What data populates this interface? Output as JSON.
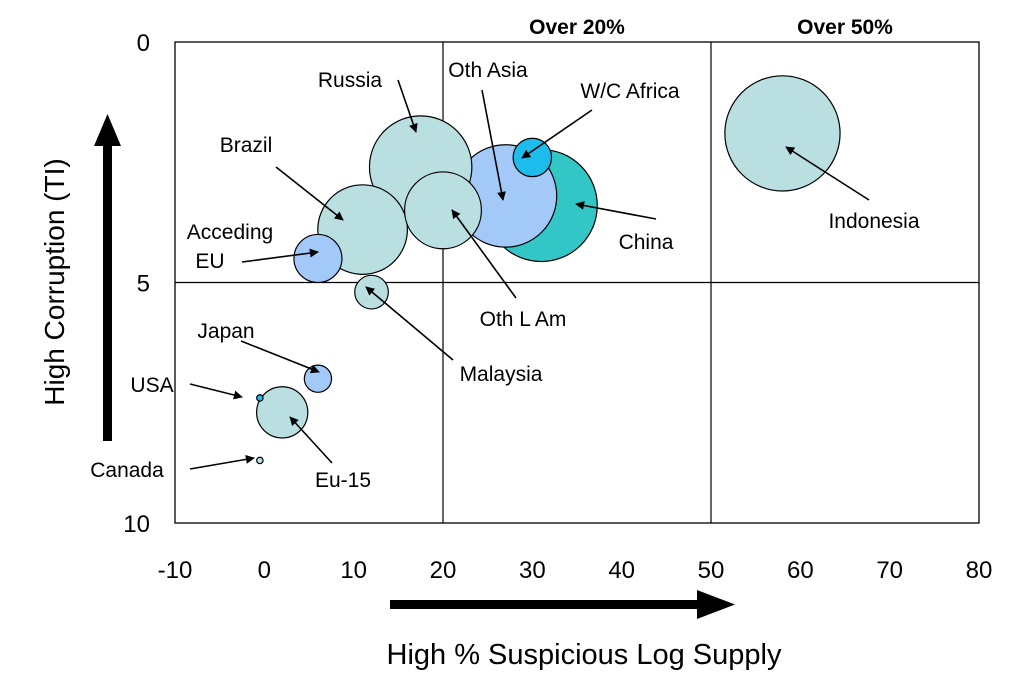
{
  "chart_data": {
    "type": "scatter",
    "subtype": "bubble",
    "xlabel": "High % Suspicious Log Supply",
    "ylabel": "High Corruption (TI)",
    "xlim": [
      -10,
      80
    ],
    "ylim": [
      0,
      10
    ],
    "y_inverted": true,
    "x_ticks": [
      "-10",
      "0",
      "10",
      "20",
      "30",
      "40",
      "50",
      "60",
      "70",
      "80"
    ],
    "y_ticks": [
      "0",
      "5",
      "10"
    ],
    "divider_lines": {
      "x": [
        20,
        50
      ],
      "y": [
        5
      ]
    },
    "region_headers": [
      {
        "text": "Over 20%",
        "x": 35
      },
      {
        "text": "Over 50%",
        "x": 65
      }
    ],
    "grid": false,
    "colors": {
      "light_teal": "#b9dfe0",
      "light_blue": "#a3c9f9",
      "teal": "#33c6c6",
      "cyan": "#1ebcec",
      "outline": "#000000"
    },
    "points": [
      {
        "label": "Indonesia",
        "x": 58,
        "y": 1.9,
        "size": 36,
        "color": "#b9dfe0"
      },
      {
        "label": "China",
        "x": 31,
        "y": 3.4,
        "size": 35,
        "color": "#33c6c6"
      },
      {
        "label": "Oth Asia",
        "x": 27,
        "y": 3.2,
        "size": 32,
        "color": "#a3c9f9"
      },
      {
        "label": "Russia",
        "x": 17.5,
        "y": 2.6,
        "size": 32,
        "color": "#b9dfe0"
      },
      {
        "label": "Brazil",
        "x": 11,
        "y": 3.9,
        "size": 28,
        "color": "#b9dfe0"
      },
      {
        "label": "Oth L Am",
        "x": 20,
        "y": 3.5,
        "size": 24,
        "color": "#b9dfe0"
      },
      {
        "label": "W/C Africa",
        "x": 30,
        "y": 2.4,
        "size": 12,
        "color": "#1ebcec"
      },
      {
        "label": "Acceding EU",
        "x": 6,
        "y": 4.5,
        "size": 15,
        "color": "#a3c9f9"
      },
      {
        "label": "Malaysia",
        "x": 12,
        "y": 5.2,
        "size": 10.5,
        "color": "#b9dfe0"
      },
      {
        "label": "Japan",
        "x": 6,
        "y": 7.0,
        "size": 8.5,
        "color": "#a3c9f9"
      },
      {
        "label": "Eu-15",
        "x": 2,
        "y": 7.7,
        "size": 16,
        "color": "#b9dfe0"
      },
      {
        "label": "USA",
        "x": -0.5,
        "y": 7.4,
        "size": 2,
        "color": "#1ebcec"
      },
      {
        "label": "Canada",
        "x": -0.5,
        "y": 8.7,
        "size": 2,
        "color": "#b9dfe0"
      }
    ],
    "annotations": [
      {
        "text": "Russia",
        "ref": "Russia"
      },
      {
        "text": "Oth Asia",
        "ref": "Oth Asia"
      },
      {
        "text": "W/C Africa",
        "ref": "W/C Africa"
      },
      {
        "text": "Brazil",
        "ref": "Brazil"
      },
      {
        "text": "Acceding",
        "ref": "Acceding EU"
      },
      {
        "text": "EU",
        "ref": "Acceding EU"
      },
      {
        "text": "China",
        "ref": "China"
      },
      {
        "text": "Indonesia",
        "ref": "Indonesia"
      },
      {
        "text": "Oth L Am",
        "ref": "Oth L Am"
      },
      {
        "text": "Japan",
        "ref": "Japan"
      },
      {
        "text": "Malaysia",
        "ref": "Malaysia"
      },
      {
        "text": "USA",
        "ref": "USA"
      },
      {
        "text": "Canada",
        "ref": "Canada"
      },
      {
        "text": "Eu-15",
        "ref": "Eu-15"
      }
    ]
  }
}
